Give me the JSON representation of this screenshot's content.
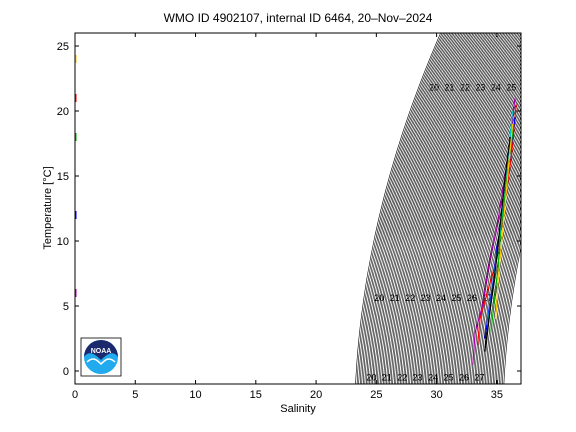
{
  "chart_data": {
    "type": "line",
    "title": "WMO ID 4902107, internal ID 6464, 20–Nov–2024",
    "xlabel": "Salinity",
    "ylabel": "Temperature [°C]",
    "xlim": [
      0,
      37
    ],
    "ylim": [
      -1,
      26
    ],
    "xticks": [
      0,
      5,
      10,
      15,
      20,
      25,
      30,
      35
    ],
    "yticks": [
      0,
      5,
      10,
      15,
      20,
      25
    ],
    "grid": false,
    "density_contours": {
      "labels": [
        "20",
        "21",
        "22",
        "23",
        "24",
        "25",
        "26",
        "27"
      ],
      "interval": 0.1
    },
    "series": [
      {
        "color": "#ff0000",
        "x": [
          33.4,
          33.6,
          34.2,
          34.8,
          35.2,
          35.6,
          35.9,
          36.2,
          36.4,
          36.6
        ],
        "y": [
          2.0,
          4.0,
          6.0,
          8.0,
          10.0,
          12.5,
          14.5,
          16.5,
          18.5,
          20.5
        ]
      },
      {
        "color": "#0000ff",
        "x": [
          34.0,
          34.3,
          34.7,
          35.0,
          35.4,
          35.7,
          36.0,
          36.3,
          36.5
        ],
        "y": [
          2.5,
          4.5,
          7.0,
          9.5,
          11.5,
          13.5,
          16.0,
          18.0,
          19.5
        ]
      },
      {
        "color": "#00aa00",
        "x": [
          34.5,
          34.8,
          35.1,
          35.3,
          35.6,
          35.9,
          36.2,
          36.4
        ],
        "y": [
          3.0,
          5.5,
          8.0,
          10.5,
          13.0,
          15.5,
          17.5,
          19.0
        ]
      },
      {
        "color": "#aa00aa",
        "x": [
          33.0,
          33.2,
          33.8,
          34.4,
          35.0,
          35.5,
          36.0,
          36.5
        ],
        "y": [
          0.5,
          3.0,
          5.0,
          8.5,
          11.0,
          14.0,
          17.0,
          21.0
        ]
      },
      {
        "color": "#ffcc00",
        "x": [
          34.9,
          35.1,
          35.4,
          35.7,
          36.0,
          36.3
        ],
        "y": [
          4.0,
          7.0,
          10.0,
          13.0,
          16.0,
          19.0
        ]
      },
      {
        "color": "#00cccc",
        "x": [
          34.2,
          34.6,
          35.0,
          35.3,
          35.6,
          36.0,
          36.3
        ],
        "y": [
          3.5,
          6.0,
          9.0,
          11.0,
          14.0,
          17.0,
          20.0
        ]
      },
      {
        "color": "#000000",
        "x": [
          34.0,
          34.4,
          34.9,
          35.3,
          35.7,
          36.1
        ],
        "y": [
          1.5,
          4.5,
          8.0,
          11.5,
          15.0,
          18.0
        ]
      }
    ],
    "surface_values": [
      {
        "color": "#ff0000",
        "x": 0,
        "y": 21
      },
      {
        "color": "#00aa00",
        "x": 0,
        "y": 18
      },
      {
        "color": "#0000ff",
        "x": 0,
        "y": 12
      },
      {
        "color": "#aa00aa",
        "x": 0,
        "y": 6
      },
      {
        "color": "#ffcc00",
        "x": 0,
        "y": 24
      }
    ]
  },
  "logo": {
    "text": "NOAA",
    "colors": {
      "navy": "#1a2a6c",
      "sky": "#22aaee"
    }
  }
}
